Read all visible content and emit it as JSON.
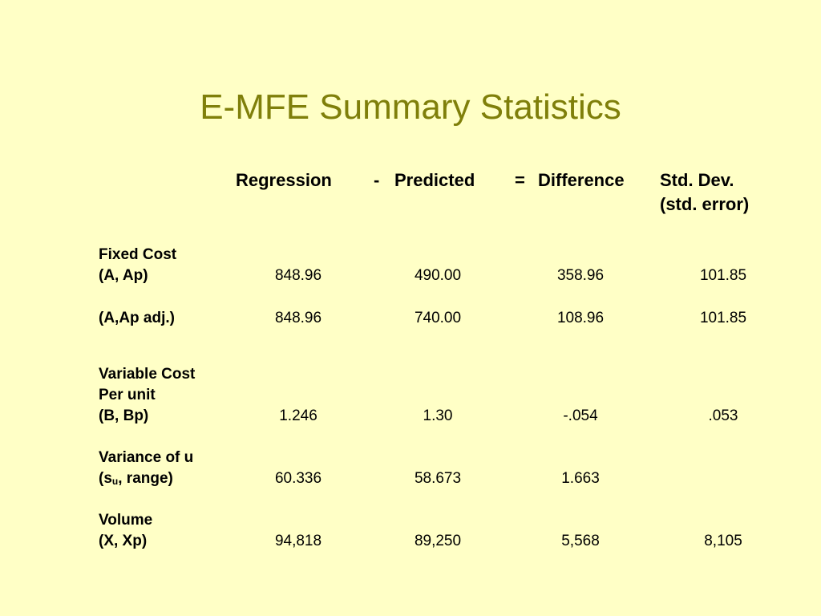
{
  "title": "E-MFE Summary Statistics",
  "headers": {
    "regression": "Regression",
    "minus": "-",
    "predicted": "Predicted",
    "equals": "=",
    "difference": "Difference",
    "stddev_line1": "Std. Dev.",
    "stddev_line2": "(std. error)"
  },
  "rows": {
    "fixed_cost": {
      "label1": "Fixed Cost",
      "label2": "(A, Ap)",
      "regression": "848.96",
      "predicted": "490.00",
      "difference": "358.96",
      "stddev": "101.85"
    },
    "fixed_cost_adj": {
      "label": "(A,Ap adj.)",
      "regression": "848.96",
      "predicted": "740.00",
      "difference": "108.96",
      "stddev": "101.85"
    },
    "variable_cost": {
      "label1": "Variable Cost",
      "label2": "Per unit",
      "label3": "(B, Bp)",
      "regression": "1.246",
      "predicted": "1.30",
      "difference": "-.054",
      "stddev": ".053"
    },
    "variance_u": {
      "label1": "Variance of u",
      "label2_open": "(s",
      "label2_sub": "u",
      "label2_rest": ", range)",
      "regression": "60.336",
      "predicted": "58.673",
      "difference": "1.663"
    },
    "volume": {
      "label1": "Volume",
      "label2": "(X, Xp)",
      "regression": "94,818",
      "predicted": "89,250",
      "difference": "5,568",
      "stddev": "8,105"
    }
  },
  "colors": {
    "background": "#ffffc6",
    "title": "#7f7f0a",
    "text": "#000000"
  }
}
